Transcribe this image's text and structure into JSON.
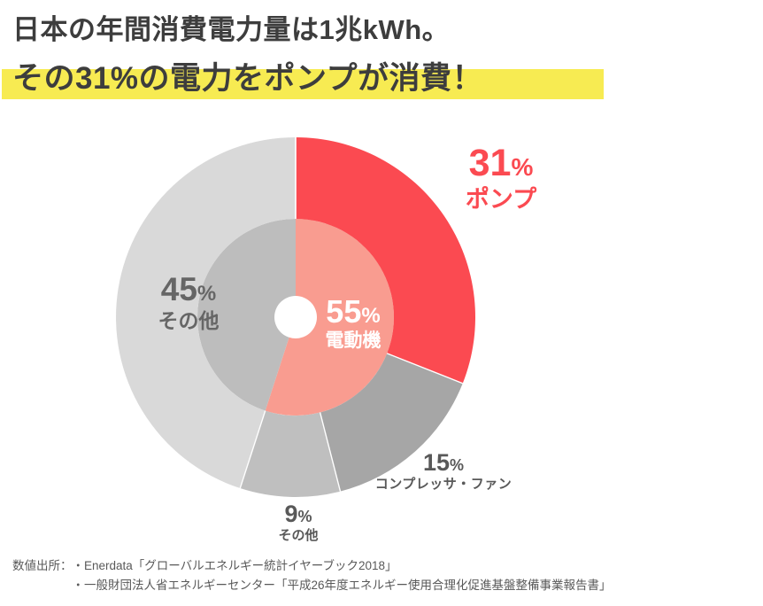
{
  "title": {
    "line1": "日本の年間消費電力量は1兆kWh。",
    "line2": "その31%の電力をポンプが消費！"
  },
  "colors": {
    "highlight_yellow": "#f7eb52",
    "accent_red": "#fb4a51",
    "salmon": "#f99c90",
    "inner_gray": "#bdbdbd",
    "gray_15": "#a6a6a6",
    "gray_9": "#bfbfbf",
    "gray_45": "#d9d9d9",
    "title_text": "#3d3d3d",
    "label_gray": "#595959"
  },
  "chart_data": {
    "type": "pie",
    "subtype": "donut-with-inner-pie",
    "unit": "%",
    "start_angle": "top",
    "direction": "clockwise",
    "legend": "none",
    "outer_ring": [
      {
        "label": "ポンプ",
        "value": 31,
        "color": "#fb4a51"
      },
      {
        "label": "コンプレッサ・ファン",
        "value": 15,
        "color": "#a6a6a6"
      },
      {
        "label": "その他",
        "value": 9,
        "color": "#bfbfbf"
      },
      {
        "label": "その他",
        "value": 45,
        "color": "#d9d9d9"
      }
    ],
    "inner_pie": [
      {
        "label": "電動機",
        "value": 55,
        "color": "#f99c90"
      },
      {
        "label": "",
        "value": 45,
        "color": "#bdbdbd"
      }
    ]
  },
  "callouts": {
    "pump": {
      "value": "31",
      "pct": "%",
      "name": "ポンプ"
    },
    "other45": {
      "value": "45",
      "pct": "%",
      "name": "その他"
    },
    "motor": {
      "value": "55",
      "pct": "%",
      "name": "電動機"
    },
    "compressor": {
      "value": "15",
      "pct": "%",
      "name": "コンプレッサ・ファン"
    },
    "other9": {
      "value": "9",
      "pct": "%",
      "name": "その他"
    }
  },
  "source": {
    "prefix": "数値出所：",
    "line1": "・Enerdata「グローバルエネルギー統計イヤーブック2018」",
    "line2": "・一般財団法人省エネルギーセンター「平成26年度エネルギー使用合理化促進基盤整備事業報告書」"
  }
}
